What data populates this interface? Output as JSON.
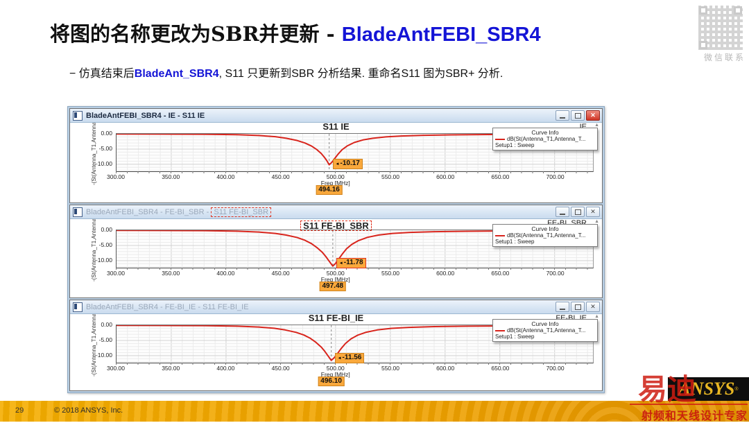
{
  "slide": {
    "title_black": "将图的名称更改为SBR并更新 - ",
    "title_blue": "BladeAntFEBI_SBR4",
    "bullet_prefix": "− 仿真结束后",
    "bullet_highlight": "BladeAnt_SBR4",
    "bullet_suffix": ", S11 只更新到SBR 分析结果. 重命名S11 图为SBR+ 分析.",
    "page_number": "29",
    "copyright": "© 2018  ANSYS, Inc.",
    "qr_caption": "微信联系",
    "logo_text": "ANSYS",
    "logo_reg": "®",
    "watermark_brand": "易迪",
    "watermark_tagline": "射频和天线设计专家"
  },
  "colors": {
    "curve": "#d8241c",
    "accent_blue": "#1414d6",
    "annotation_red": "#e0331f",
    "badge_orange": "#f9a83c",
    "footer_orange": "#efa400",
    "logo_gold": "#e8b723",
    "watermark_red": "#ce1c12"
  },
  "plot": {
    "ylabel": "-(St(Antenna_T1,Antenna",
    "xlabel": "Freq [MHz]",
    "yticks": [
      "0.00",
      "-5.00",
      "-10.00"
    ],
    "xticks": [
      "300.00",
      "350.00",
      "400.00",
      "450.00",
      "500.00",
      "550.00",
      "600.00",
      "650.00",
      "700.00"
    ],
    "legend": {
      "header": "Curve Info",
      "entry": "dB(St(Antenna_T1,Antenna_T...",
      "sub": "Setup1 : Sweep"
    },
    "scroll_arrow": "▲"
  },
  "windows": [
    {
      "title_prefix": "BladeAntFEBI_SBR4 - IE - S11 IE",
      "title_tail": "",
      "plot_title": "S11 IE",
      "corner_label": "IE",
      "marker": {
        "value": "-10.17",
        "freq": "494.16"
      }
    },
    {
      "title_prefix": "BladeAntFEBI_SBR4 - FE-BI_SBR - ",
      "title_tail": "S11 FE-BI_SBR",
      "plot_title": "S11 FE-BI_SBR",
      "corner_label": "FE-BI_SBR",
      "marker": {
        "value": "-11.78",
        "freq": "497.48"
      }
    },
    {
      "title_prefix": "BladeAntFEBI_SBR4 - FE-BI_IE - S11 FE-BI_IE",
      "title_tail": "",
      "plot_title": "S11 FE-BI_IE",
      "corner_label": "FE-BI_IE",
      "marker": {
        "value": "-11.56",
        "freq": "496.10"
      }
    }
  ],
  "chart_data": [
    {
      "type": "line",
      "title": "S11 IE",
      "xlabel": "Freq [MHz]",
      "ylabel": "dB(St(Antenna_T1,Antenna_T1))",
      "xlim": [
        300,
        735
      ],
      "ylim": [
        0,
        -12.3
      ],
      "grid": true,
      "legend_position": "top-right",
      "marker": {
        "freq": 494.16,
        "db": -10.17
      },
      "series": [
        {
          "name": "dB(St(Antenna_T1,Antenna_T1)) Setup1 : Sweep",
          "points": [
            [
              300,
              -0.06
            ],
            [
              340,
              -0.08
            ],
            [
              380,
              -0.14
            ],
            [
              410,
              -0.28
            ],
            [
              430,
              -0.55
            ],
            [
              445,
              -0.95
            ],
            [
              455,
              -1.45
            ],
            [
              465,
              -2.2
            ],
            [
              472,
              -3.0
            ],
            [
              478,
              -4.0
            ],
            [
              483,
              -5.2
            ],
            [
              487,
              -6.5
            ],
            [
              490,
              -7.8
            ],
            [
              492,
              -8.8
            ],
            [
              494.16,
              -10.17
            ],
            [
              496.5,
              -9.4
            ],
            [
              499,
              -8.2
            ],
            [
              502,
              -6.8
            ],
            [
              506,
              -5.2
            ],
            [
              511,
              -3.9
            ],
            [
              517,
              -2.85
            ],
            [
              525,
              -2.0
            ],
            [
              534,
              -1.45
            ],
            [
              546,
              -1.0
            ],
            [
              560,
              -0.7
            ],
            [
              580,
              -0.48
            ],
            [
              605,
              -0.34
            ],
            [
              640,
              -0.24
            ],
            [
              680,
              -0.18
            ],
            [
              735,
              -0.12
            ]
          ]
        }
      ]
    },
    {
      "type": "line",
      "title": "S11 FE-BI_SBR",
      "xlabel": "Freq [MHz]",
      "ylabel": "dB(St(Antenna_T1,Antenna_T1))",
      "xlim": [
        300,
        735
      ],
      "ylim": [
        0,
        -12.3
      ],
      "grid": true,
      "legend_position": "top-right",
      "marker": {
        "freq": 497.48,
        "db": -11.78
      },
      "series": [
        {
          "name": "dB(St(Antenna_T1,Antenna_T1)) Setup1 : Sweep",
          "points": [
            [
              300,
              -0.06
            ],
            [
              340,
              -0.09
            ],
            [
              380,
              -0.15
            ],
            [
              410,
              -0.3
            ],
            [
              430,
              -0.6
            ],
            [
              445,
              -1.05
            ],
            [
              455,
              -1.6
            ],
            [
              465,
              -2.4
            ],
            [
              472,
              -3.3
            ],
            [
              478,
              -4.4
            ],
            [
              483,
              -5.7
            ],
            [
              488,
              -7.3
            ],
            [
              491,
              -8.6
            ],
            [
              494,
              -10.1
            ],
            [
              497.48,
              -11.78
            ],
            [
              500,
              -10.9
            ],
            [
              503,
              -9.4
            ],
            [
              506,
              -7.9
            ],
            [
              510,
              -6.1
            ],
            [
              515,
              -4.6
            ],
            [
              521,
              -3.4
            ],
            [
              529,
              -2.35
            ],
            [
              539,
              -1.6
            ],
            [
              552,
              -1.05
            ],
            [
              568,
              -0.72
            ],
            [
              590,
              -0.48
            ],
            [
              620,
              -0.33
            ],
            [
              660,
              -0.22
            ],
            [
              700,
              -0.16
            ],
            [
              735,
              -0.12
            ]
          ]
        }
      ]
    },
    {
      "type": "line",
      "title": "S11 FE-BI_IE",
      "xlabel": "Freq [MHz]",
      "ylabel": "dB(St(Antenna_T1,Antenna_T1))",
      "xlim": [
        300,
        735
      ],
      "ylim": [
        0,
        -12.3
      ],
      "grid": true,
      "legend_position": "top-right",
      "marker": {
        "freq": 496.1,
        "db": -11.56
      },
      "series": [
        {
          "name": "dB(St(Antenna_T1,Antenna_T1)) Setup1 : Sweep",
          "points": [
            [
              300,
              -0.06
            ],
            [
              340,
              -0.09
            ],
            [
              380,
              -0.15
            ],
            [
              410,
              -0.3
            ],
            [
              430,
              -0.6
            ],
            [
              444,
              -1.0
            ],
            [
              454,
              -1.55
            ],
            [
              464,
              -2.35
            ],
            [
              471,
              -3.2
            ],
            [
              477,
              -4.3
            ],
            [
              482,
              -5.6
            ],
            [
              487,
              -7.2
            ],
            [
              490,
              -8.5
            ],
            [
              493,
              -10.0
            ],
            [
              496.1,
              -11.56
            ],
            [
              499,
              -10.6
            ],
            [
              502,
              -9.2
            ],
            [
              505,
              -7.7
            ],
            [
              509,
              -6.0
            ],
            [
              514,
              -4.5
            ],
            [
              520,
              -3.3
            ],
            [
              528,
              -2.3
            ],
            [
              538,
              -1.55
            ],
            [
              551,
              -1.02
            ],
            [
              567,
              -0.7
            ],
            [
              590,
              -0.47
            ],
            [
              620,
              -0.32
            ],
            [
              660,
              -0.22
            ],
            [
              700,
              -0.16
            ],
            [
              735,
              -0.12
            ]
          ]
        }
      ]
    }
  ]
}
